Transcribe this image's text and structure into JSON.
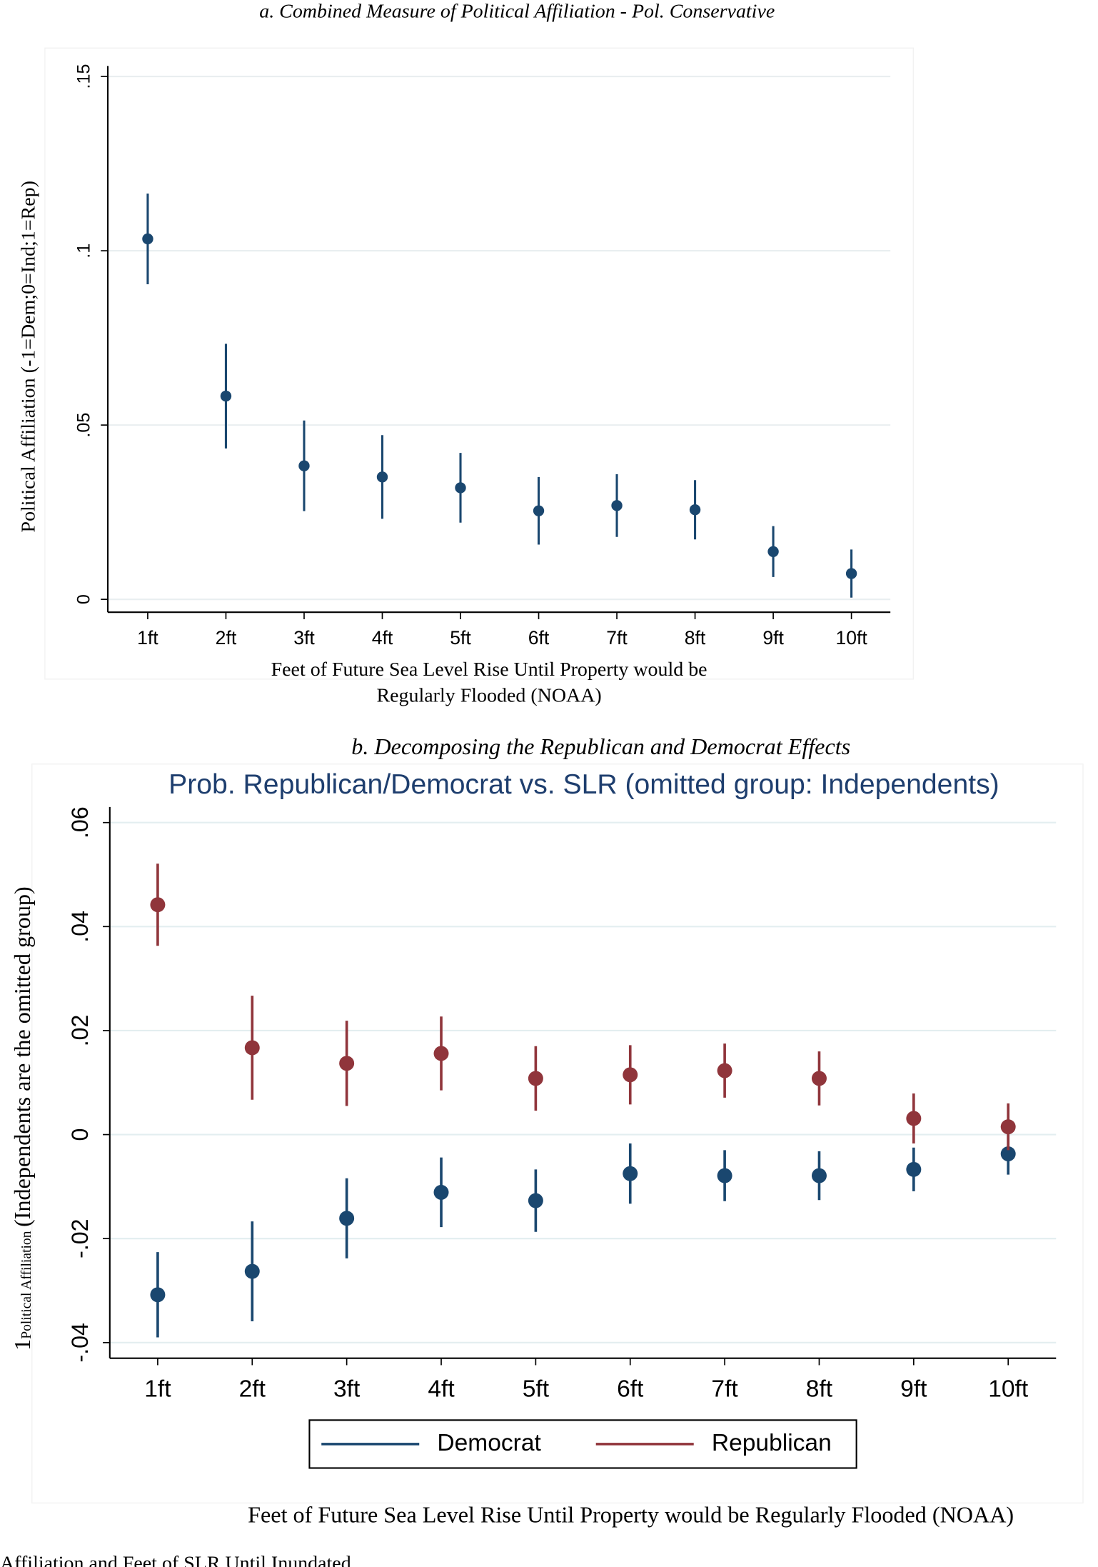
{
  "chart_data": [
    {
      "type": "errorbar",
      "title": "a. Combined Measure of Political Affiliation - Pol. Conservative",
      "y_label": "Political Affiliation (-1=Dem;0=Ind;1=Rep)",
      "x_label": [
        "Feet of Future Sea Level Rise Until Property would be",
        "Regularly Flooded (NOAA)"
      ],
      "categories": [
        "1ft",
        "2ft",
        "3ft",
        "4ft",
        "5ft",
        "6ft",
        "7ft",
        "8ft",
        "9ft",
        "10ft"
      ],
      "values": [
        0.1034,
        0.0583,
        0.0383,
        0.0351,
        0.032,
        0.0254,
        0.0269,
        0.0257,
        0.0137,
        0.0074
      ],
      "errors": [
        0.013,
        0.015,
        0.013,
        0.012,
        0.01,
        0.0097,
        0.009,
        0.0085,
        0.0073,
        0.0069
      ],
      "color": "#1a476f",
      "ylim": [
        -0.0037,
        0.153
      ],
      "yticks": [
        {
          "value": 0.15,
          "label": ".15"
        },
        {
          "value": 0.1,
          "label": ".1"
        },
        {
          "value": 0.05,
          "label": ".05"
        },
        0
      ],
      "grid": true
    },
    {
      "type": "errorbar",
      "title": "b. Decomposing the Republican and Democrat Effects",
      "subtitle": "Prob. Republican/Democrat vs. SLR (omitted group: Independents)",
      "y_label": [
        "1",
        "Political Affiliation",
        "(Independents are the omitted group)"
      ],
      "x_label": [
        "Feet of Future Sea Level Rise Until Property would be Regularly Flooded (NOAA)"
      ],
      "categories": [
        "1ft",
        "2ft",
        "3ft",
        "4ft",
        "5ft",
        "6ft",
        "7ft",
        "8ft",
        "9ft",
        "10ft"
      ],
      "series": [
        {
          "name": "Democrat",
          "color": "#1a476f",
          "values": [
            -0.0308,
            -0.0263,
            -0.0161,
            -0.0111,
            -0.0127,
            -0.0075,
            -0.0079,
            -0.0079,
            -0.0067,
            -0.0037
          ],
          "errors": [
            0.0082,
            0.0096,
            0.0077,
            0.0067,
            0.006,
            0.0058,
            0.0049,
            0.0047,
            0.0042,
            0.004
          ]
        },
        {
          "name": "Republican",
          "color": "#90353b",
          "values": [
            0.0442,
            0.0167,
            0.0137,
            0.0156,
            0.0108,
            0.0115,
            0.0123,
            0.0108,
            0.0031,
            0.0015
          ],
          "errors": [
            0.0079,
            0.01,
            0.0082,
            0.0071,
            0.0062,
            0.0057,
            0.0052,
            0.0052,
            0.0048,
            0.0045
          ]
        }
      ],
      "ylim": [
        -0.043,
        0.063
      ],
      "yticks": [
        {
          "value": 0.06,
          "label": ".06"
        },
        {
          "value": 0.04,
          "label": ".04"
        },
        {
          "value": 0.02,
          "label": ".02"
        },
        0,
        {
          "value": -0.02,
          "label": "-.02"
        },
        {
          "value": -0.04,
          "label": "-.04"
        }
      ],
      "grid": true
    }
  ],
  "caption": "Affiliation and Feet of SLR Until Inundated"
}
